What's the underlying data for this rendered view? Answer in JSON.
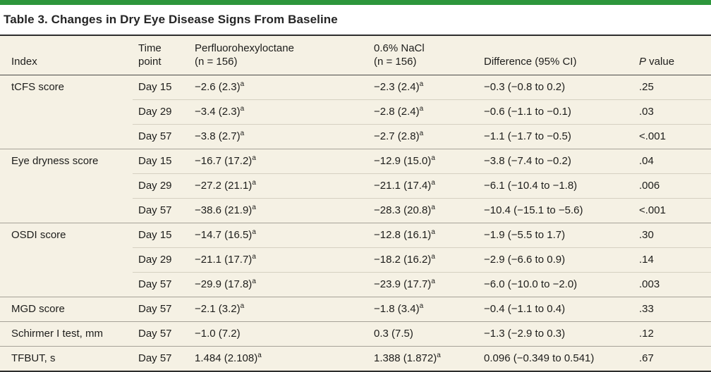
{
  "title": "Table 3. Changes in Dry Eye Disease Signs From Baseline",
  "colors": {
    "accent_green": "#2D963C",
    "table_background": "#F5F1E4",
    "rule_dark": "#2d2d2d"
  },
  "columns": {
    "index": {
      "label": "Index"
    },
    "time": {
      "line1": "Time",
      "line2": "point"
    },
    "pfho": {
      "line1": "Perfluorohexyloctane",
      "line2": "(n = 156)"
    },
    "nacl": {
      "line1": "0.6% NaCl",
      "line2": "(n = 156)"
    },
    "diff": {
      "label": "Difference (95% CI)"
    },
    "p": {
      "italic": "P",
      "rest": " value"
    }
  },
  "rows": [
    {
      "index": "tCFS score",
      "time": "Day 15",
      "pfho": {
        "text": "−2.6 (2.3)",
        "sup": "a"
      },
      "nacl": {
        "text": "−2.3 (2.4)",
        "sup": "a"
      },
      "diff": "−0.3 (−0.8 to 0.2)",
      "p": ".25"
    },
    {
      "index": "",
      "time": "Day 29",
      "pfho": {
        "text": "−3.4 (2.3)",
        "sup": "a"
      },
      "nacl": {
        "text": "−2.8 (2.4)",
        "sup": "a"
      },
      "diff": "−0.6 (−1.1 to −0.1)",
      "p": ".03"
    },
    {
      "index": "",
      "time": "Day 57",
      "pfho": {
        "text": "−3.8 (2.7)",
        "sup": "a"
      },
      "nacl": {
        "text": "−2.7 (2.8)",
        "sup": "a"
      },
      "diff": "−1.1 (−1.7 to −0.5)",
      "p": "<.001"
    },
    {
      "index": "Eye dryness score",
      "time": "Day 15",
      "pfho": {
        "text": "−16.7 (17.2)",
        "sup": "a"
      },
      "nacl": {
        "text": "−12.9 (15.0)",
        "sup": "a"
      },
      "diff": "−3.8 (−7.4 to −0.2)",
      "p": ".04"
    },
    {
      "index": "",
      "time": "Day 29",
      "pfho": {
        "text": "−27.2 (21.1)",
        "sup": "a"
      },
      "nacl": {
        "text": "−21.1 (17.4)",
        "sup": "a"
      },
      "diff": "−6.1 (−10.4 to −1.8)",
      "p": ".006"
    },
    {
      "index": "",
      "time": "Day 57",
      "pfho": {
        "text": "−38.6 (21.9)",
        "sup": "a"
      },
      "nacl": {
        "text": "−28.3 (20.8)",
        "sup": "a"
      },
      "diff": "−10.4 (−15.1 to −5.6)",
      "p": "<.001"
    },
    {
      "index": "OSDI score",
      "time": "Day 15",
      "pfho": {
        "text": "−14.7 (16.5)",
        "sup": "a"
      },
      "nacl": {
        "text": "−12.8 (16.1)",
        "sup": "a"
      },
      "diff": "−1.9 (−5.5 to 1.7)",
      "p": ".30"
    },
    {
      "index": "",
      "time": "Day 29",
      "pfho": {
        "text": "−21.1 (17.7)",
        "sup": "a"
      },
      "nacl": {
        "text": "−18.2 (16.2)",
        "sup": "a"
      },
      "diff": "−2.9 (−6.6 to 0.9)",
      "p": ".14"
    },
    {
      "index": "",
      "time": "Day 57",
      "pfho": {
        "text": "−29.9 (17.8)",
        "sup": "a"
      },
      "nacl": {
        "text": "−23.9 (17.7)",
        "sup": "a"
      },
      "diff": "−6.0 (−10.0 to −2.0)",
      "p": ".003"
    },
    {
      "index": "MGD score",
      "time": "Day 57",
      "pfho": {
        "text": "−2.1 (3.2)",
        "sup": "a"
      },
      "nacl": {
        "text": "−1.8 (3.4)",
        "sup": "a"
      },
      "diff": "−0.4 (−1.1 to 0.4)",
      "p": ".33"
    },
    {
      "index": "Schirmer I test, mm",
      "time": "Day 57",
      "pfho": {
        "text": "−1.0 (7.2)",
        "sup": ""
      },
      "nacl": {
        "text": "0.3 (7.5)",
        "sup": ""
      },
      "diff": "−1.3 (−2.9 to 0.3)",
      "p": ".12"
    },
    {
      "index": "TFBUT, s",
      "time": "Day 57",
      "pfho": {
        "text": "1.484 (2.108)",
        "sup": "a"
      },
      "nacl": {
        "text": "1.388 (1.872)",
        "sup": "a"
      },
      "diff": "0.096 (−0.349 to 0.541)",
      "p": ".67"
    }
  ]
}
